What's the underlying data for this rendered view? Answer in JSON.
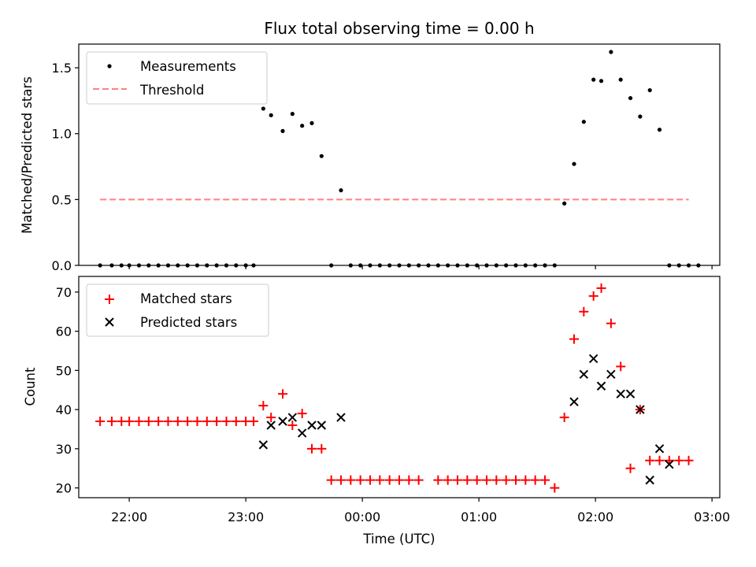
{
  "chart_data": [
    {
      "type": "scatter",
      "title": "Flux total observing time = 0.00 h",
      "xlabel": "",
      "ylabel": "Matched/Predicted stars",
      "ylim": [
        0,
        1.68
      ],
      "yticks": [
        "0.0",
        "0.5",
        "1.0",
        "1.5"
      ],
      "ytick_values": [
        0,
        0.5,
        1.0,
        1.5
      ],
      "xlim": [
        "21:34",
        "03:04"
      ],
      "xticks": [
        "22:00",
        "23:00",
        "00:00",
        "01:00",
        "02:00",
        "03:00"
      ],
      "legend": {
        "placement": "upper left",
        "entries": [
          "Measurements",
          "Threshold"
        ]
      },
      "series": [
        {
          "name": "Measurements",
          "marker": "dot",
          "color": "#000000",
          "x": [
            "21:45",
            "21:51",
            "21:56",
            "22:00",
            "22:05",
            "22:10",
            "22:15",
            "22:20",
            "22:25",
            "22:30",
            "22:35",
            "22:40",
            "22:45",
            "22:50",
            "22:55",
            "23:00",
            "23:04",
            "23:09",
            "23:13",
            "23:19",
            "23:24",
            "23:29",
            "23:34",
            "23:39",
            "23:44",
            "23:49",
            "23:54",
            "23:59",
            "00:04",
            "00:09",
            "00:14",
            "00:19",
            "00:24",
            "00:29",
            "00:34",
            "00:39",
            "00:44",
            "00:49",
            "00:54",
            "00:59",
            "01:04",
            "01:09",
            "01:14",
            "01:19",
            "01:24",
            "01:29",
            "01:34",
            "01:39",
            "01:44",
            "01:49",
            "01:54",
            "01:59",
            "02:03",
            "02:08",
            "02:13",
            "02:18",
            "02:23",
            "02:28",
            "02:33",
            "02:38",
            "02:43",
            "02:48",
            "02:53"
          ],
          "values": [
            0,
            0,
            0,
            0,
            0,
            0,
            0,
            0,
            0,
            0,
            0,
            0,
            0,
            0,
            0,
            0,
            0,
            1.19,
            1.14,
            1.02,
            1.15,
            1.06,
            1.08,
            0.83,
            0,
            0.57,
            0,
            0,
            0,
            0,
            0,
            0,
            0,
            0,
            0,
            0,
            0,
            0,
            0,
            0,
            0,
            0,
            0,
            0,
            0,
            0,
            0,
            0,
            0.47,
            0.77,
            1.09,
            1.41,
            1.4,
            1.62,
            1.41,
            1.27,
            1.13,
            1.33,
            1.03,
            0,
            0,
            0,
            0
          ]
        },
        {
          "name": "Threshold",
          "style": "dashed",
          "color": "#ff8080",
          "x": [
            "21:45",
            "02:48"
          ],
          "values": [
            0.5,
            0.5
          ]
        }
      ]
    },
    {
      "type": "scatter",
      "title": "",
      "xlabel": "Time (UTC)",
      "ylabel": "Count",
      "ylim": [
        17.5,
        74
      ],
      "yticks": [
        "20",
        "30",
        "40",
        "50",
        "60",
        "70"
      ],
      "ytick_values": [
        20,
        30,
        40,
        50,
        60,
        70
      ],
      "xlim": [
        "21:34",
        "03:04"
      ],
      "xticks": [
        "22:00",
        "23:00",
        "00:00",
        "01:00",
        "02:00",
        "03:00"
      ],
      "legend": {
        "placement": "upper left",
        "entries": [
          "Matched stars",
          "Predicted stars"
        ]
      },
      "series": [
        {
          "name": "Matched stars",
          "marker": "plus",
          "color": "#ff0000",
          "x": [
            "21:45",
            "21:51",
            "21:56",
            "22:00",
            "22:05",
            "22:10",
            "22:15",
            "22:20",
            "22:25",
            "22:30",
            "22:35",
            "22:40",
            "22:45",
            "22:50",
            "22:55",
            "23:00",
            "23:04",
            "23:09",
            "23:13",
            "23:19",
            "23:24",
            "23:29",
            "23:34",
            "23:39",
            "23:44",
            "23:49",
            "23:54",
            "23:59",
            "00:04",
            "00:09",
            "00:14",
            "00:19",
            "00:24",
            "00:29",
            "00:39",
            "00:44",
            "00:49",
            "00:54",
            "00:59",
            "01:04",
            "01:09",
            "01:14",
            "01:19",
            "01:24",
            "01:29",
            "01:34",
            "01:39",
            "01:44",
            "01:49",
            "01:54",
            "01:59",
            "02:03",
            "02:08",
            "02:13",
            "02:18",
            "02:23",
            "02:28",
            "02:33",
            "02:38",
            "02:43",
            "02:48"
          ],
          "values": [
            37,
            37,
            37,
            37,
            37,
            37,
            37,
            37,
            37,
            37,
            37,
            37,
            37,
            37,
            37,
            37,
            37,
            41,
            38,
            44,
            36,
            39,
            30,
            30,
            22,
            22,
            22,
            22,
            22,
            22,
            22,
            22,
            22,
            22,
            22,
            22,
            22,
            22,
            22,
            22,
            22,
            22,
            22,
            22,
            22,
            22,
            20,
            38,
            58,
            65,
            69,
            71,
            62,
            51,
            25,
            40,
            27,
            27,
            27,
            27,
            27
          ]
        },
        {
          "name": "Predicted stars",
          "marker": "x",
          "color": "#000000",
          "x": [
            "23:09",
            "23:13",
            "23:19",
            "23:24",
            "23:29",
            "23:34",
            "23:39",
            "23:49",
            "01:49",
            "01:54",
            "01:59",
            "02:03",
            "02:08",
            "02:13",
            "02:18",
            "02:23",
            "02:28",
            "02:33",
            "02:38"
          ],
          "values": [
            31,
            36,
            37,
            38,
            34,
            36,
            36,
            38,
            42,
            49,
            53,
            46,
            49,
            44,
            44,
            40,
            22,
            30,
            26
          ]
        }
      ]
    }
  ]
}
